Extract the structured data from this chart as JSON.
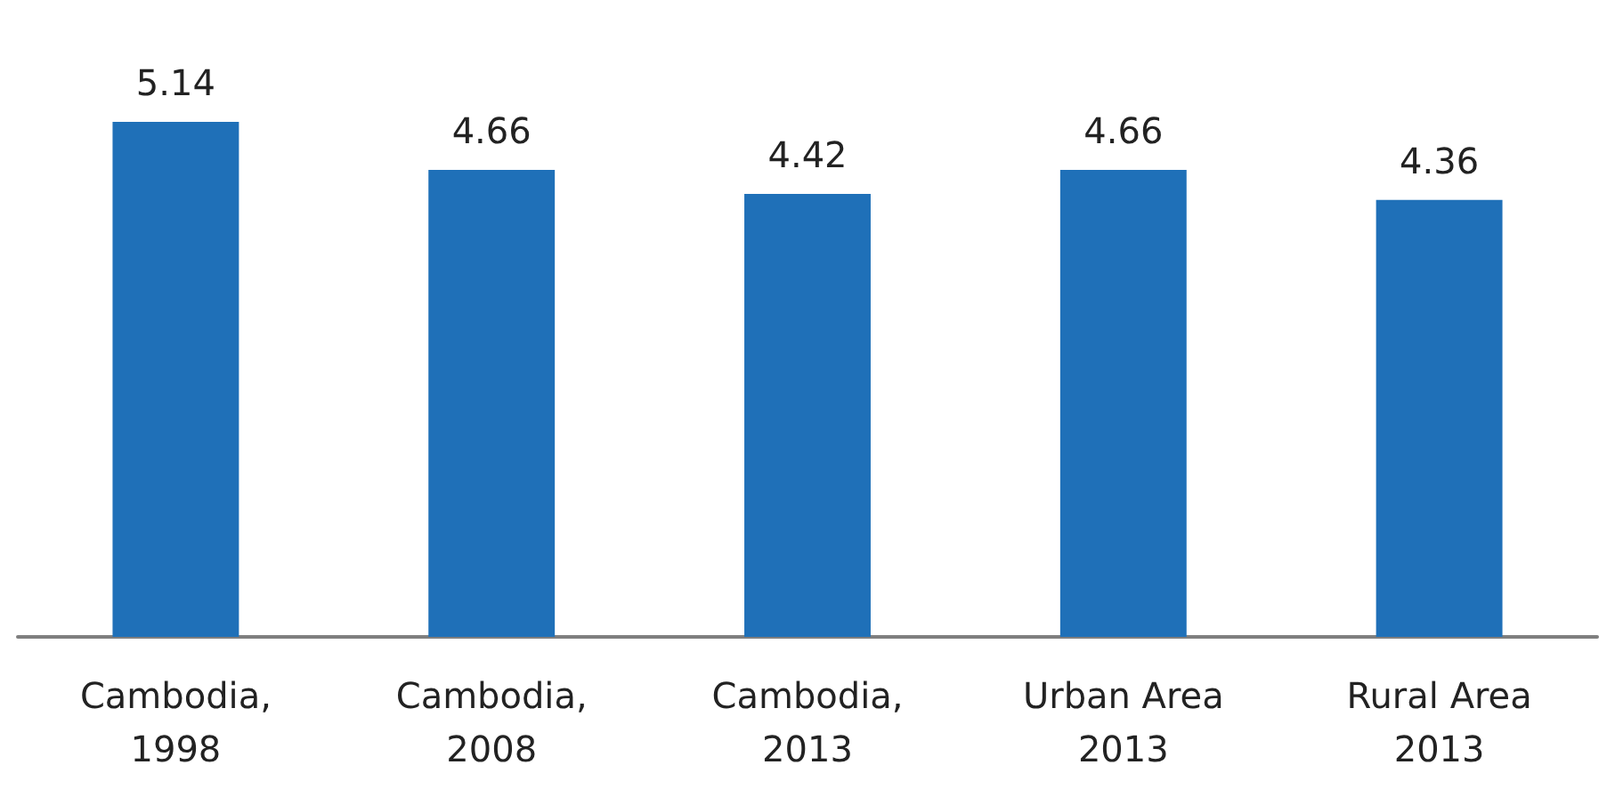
{
  "chart_data": {
    "type": "bar",
    "categories": [
      "Cambodia,\n1998",
      "Cambodia,\n2008",
      "Cambodia,\n2013",
      "Urban Area\n2013",
      "Rural Area\n2013"
    ],
    "values": [
      5.14,
      4.66,
      4.42,
      4.66,
      4.36
    ],
    "color": "#1f70b8",
    "data_labels": true,
    "tick_labels": "x",
    "grid": false
  }
}
